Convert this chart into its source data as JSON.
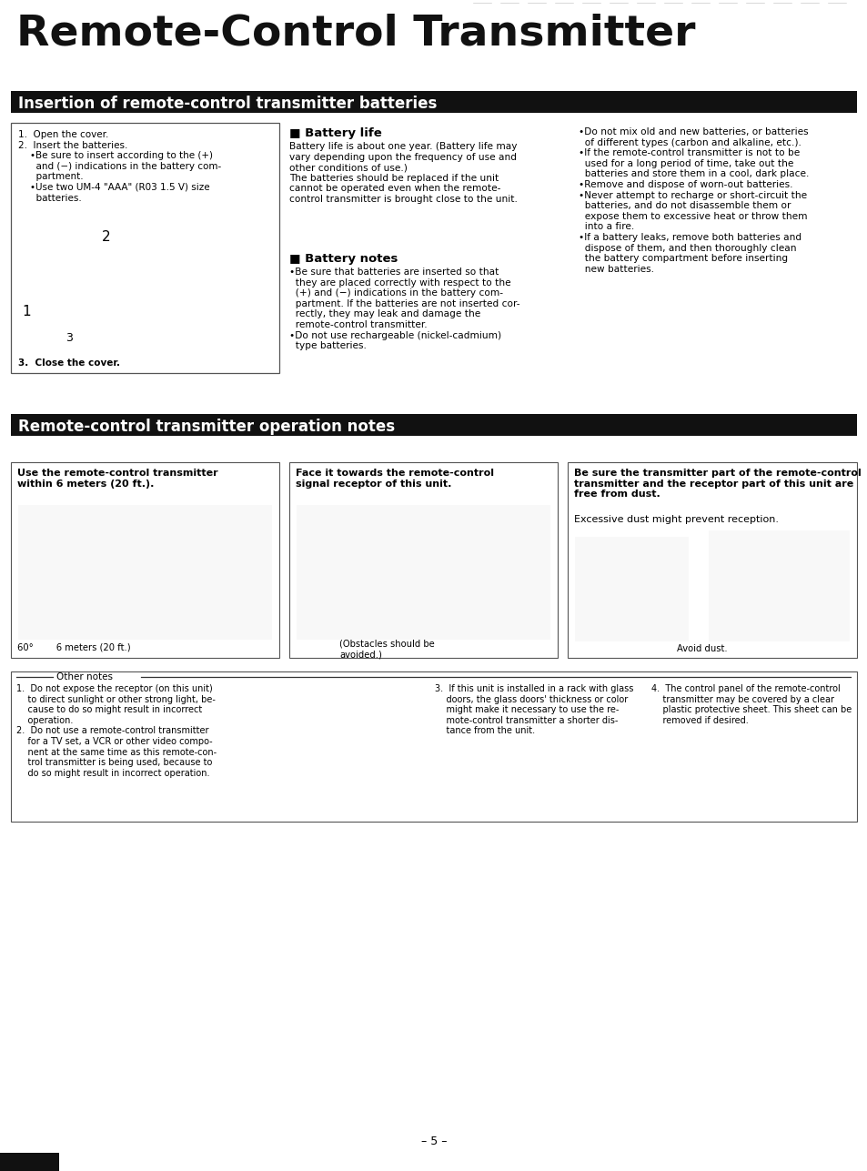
{
  "page_bg": "#ffffff",
  "main_title": "Remote-Control Transmitter",
  "header1_text": "Insertion of remote-control transmitter batteries",
  "header2_text": "Remote-control transmitter operation notes",
  "battery_life_title": "■ Battery life",
  "battery_life_body": "Battery life is about one year. (Battery life may\nvary depending upon the frequency of use and\nother conditions of use.)\nThe batteries should be replaced if the unit\ncannot be operated even when the remote-\ncontrol transmitter is brought close to the unit.",
  "battery_notes_title": "■ Battery notes",
  "battery_notes_body": "•Be sure that batteries are inserted so that\n  they are placed correctly with respect to the\n  (+) and (−) indications in the battery com-\n  partment. If the batteries are not inserted cor-\n  rectly, they may leak and damage the\n  remote-control transmitter.\n•Do not use rechargeable (nickel-cadmium)\n  type batteries.",
  "right_col_text": "•Do not mix old and new batteries, or batteries\n  of different types (carbon and alkaline, etc.).\n•If the remote-control transmitter is not to be\n  used for a long period of time, take out the\n  batteries and store them in a cool, dark place.\n•Remove and dispose of worn-out batteries.\n•Never attempt to recharge or short-circuit the\n  batteries, and do not disassemble them or\n  expose them to excessive heat or throw them\n  into a fire.\n•If a battery leaks, remove both batteries and\n  dispose of them, and then thoroughly clean\n  the battery compartment before inserting\n  new batteries.",
  "left_box_steps": "1.  Open the cover.\n2.  Insert the batteries.\n    •Be sure to insert according to the (+)\n      and (−) indications in the battery com-\n      partment.\n    •Use two UM-4 \"AAA\" (R03 1.5 V) size\n      batteries.",
  "left_box_close": "3.  Close the cover.",
  "op_box1_title": "Use the remote-control transmitter\nwithin 6 meters (20 ft.).",
  "op_box1_sub": "60°        6 meters (20 ft.)",
  "op_box2_title": "Face it towards the remote-control\nsignal receptor of this unit.",
  "op_box2_sub": "(Obstacles should be\navoided.)",
  "op_box3_title": "Be sure the transmitter part of the remote-control\ntransmitter and the receptor part of this unit are\nfree from dust.",
  "op_box3_sub": "Excessive dust might prevent reception.",
  "op_box3_img_label": "Avoid dust.",
  "other_notes_header": "Other notes",
  "note1": "1.  Do not expose the receptor (on this unit)\n    to direct sunlight or other strong light, be-\n    cause to do so might result in incorrect\n    operation.\n2.  Do not use a remote-control transmitter\n    for a TV set, a VCR or other video compo-\n    nent at the same time as this remote-con-\n    trol transmitter is being used, because to\n    do so might result in incorrect operation.",
  "note3": "3.  If this unit is installed in a rack with glass\n    doors, the glass doors' thickness or color\n    might make it necessary to use the re-\n    mote-control transmitter a shorter dis-\n    tance from the unit.",
  "note4": "4.  The control panel of the remote-control\n    transmitter may be covered by a clear\n    plastic protective sheet. This sheet can be\n    removed if desired.",
  "page_number": "– 5 –"
}
